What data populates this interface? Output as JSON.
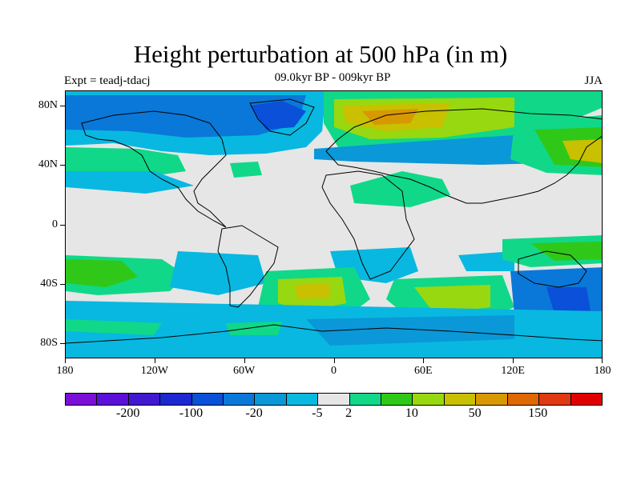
{
  "title": "Height perturbation at 500 hPa (in m)",
  "subtitle": "09.0kyr BP - 009kyr BP",
  "left_label": "Expt = teadj-tdacj",
  "right_label": "JJA",
  "map": {
    "projection": "cylindrical-equidistant",
    "lon_range": [
      -180,
      180
    ],
    "lat_range": [
      -90,
      90
    ],
    "background_color": "#e6e6e6",
    "coastline_color": "#000000",
    "y_ticks": [
      {
        "label": "80N",
        "lat": 80
      },
      {
        "label": "40N",
        "lat": 40
      },
      {
        "label": "0",
        "lat": 0
      },
      {
        "label": "40S",
        "lat": -40
      },
      {
        "label": "80S",
        "lat": -80
      }
    ],
    "x_ticks": [
      {
        "label": "180",
        "lon": -180
      },
      {
        "label": "120W",
        "lon": -120
      },
      {
        "label": "60W",
        "lon": -60
      },
      {
        "label": "0",
        "lon": 0
      },
      {
        "label": "60E",
        "lon": 60
      },
      {
        "label": "120E",
        "lon": 120
      },
      {
        "label": "180",
        "lon": 180
      }
    ]
  },
  "colorbar": {
    "colors": [
      "#7a10d8",
      "#5a10d8",
      "#4018d0",
      "#1c28d0",
      "#0a50d8",
      "#0a78d8",
      "#0a98d8",
      "#08b8e0",
      "#e6e6e6",
      "#10d888",
      "#30c818",
      "#98d810",
      "#c8c000",
      "#d89800",
      "#e06800",
      "#e03810",
      "#e00000"
    ],
    "labels": [
      {
        "text": "-200",
        "boundary": 2
      },
      {
        "text": "-100",
        "boundary": 4
      },
      {
        "text": "-20",
        "boundary": 6
      },
      {
        "text": "-5",
        "boundary": 8
      },
      {
        "text": "2",
        "boundary": 9
      },
      {
        "text": "10",
        "boundary": 11
      },
      {
        "text": "50",
        "boundary": 13
      },
      {
        "text": "150",
        "boundary": 15
      }
    ]
  },
  "field_colors": {
    "cyan": "#08b8e0",
    "blue": "#0a78d8",
    "blue_light": "#0a98d8",
    "blue_dark": "#0a50d8",
    "green": "#10d888",
    "lime": "#30c818",
    "yellowgreen": "#98d810",
    "yellow": "#c8c000",
    "orange": "#d89800"
  }
}
